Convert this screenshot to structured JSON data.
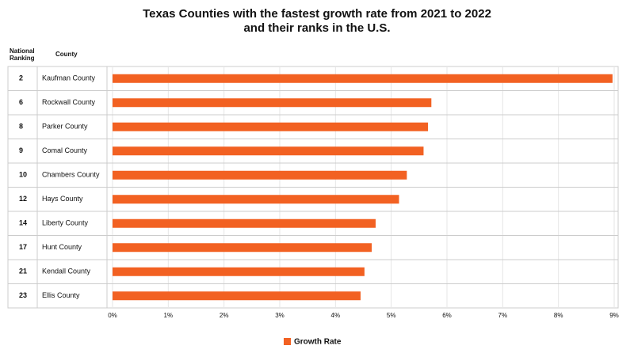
{
  "chart_data": {
    "type": "bar",
    "orientation": "horizontal",
    "title": [
      "Texas Counties with the fastest growth rate from 2021 to 2022",
      "and their ranks in the U.S."
    ],
    "columns": [
      "National Ranking",
      "County"
    ],
    "ranks": [
      2,
      6,
      8,
      9,
      10,
      12,
      14,
      17,
      21,
      23
    ],
    "categories": [
      "Kaufman County",
      "Rockwall County",
      "Parker County",
      "Comal County",
      "Chambers County",
      "Hays County",
      "Liberty County",
      "Hunt County",
      "Kendall County",
      "Ellis County"
    ],
    "series": [
      {
        "name": "Growth Rate",
        "color": "#f26122",
        "values": [
          8.97,
          5.72,
          5.66,
          5.58,
          5.28,
          5.14,
          4.72,
          4.65,
          4.52,
          4.45
        ]
      }
    ],
    "xlim": [
      0,
      9
    ],
    "xticks": [
      {
        "value": 0,
        "label": "0%"
      },
      {
        "value": 1,
        "label": "1%"
      },
      {
        "value": 2,
        "label": "2%"
      },
      {
        "value": 3,
        "label": "3%"
      },
      {
        "value": 4,
        "label": "4%"
      },
      {
        "value": 5,
        "label": "5%"
      },
      {
        "value": 6,
        "label": "6%"
      },
      {
        "value": 7,
        "label": "7%"
      },
      {
        "value": 8,
        "label": "8%"
      },
      {
        "value": 9,
        "label": "9%"
      }
    ],
    "grid": true,
    "legend": "bottom"
  }
}
